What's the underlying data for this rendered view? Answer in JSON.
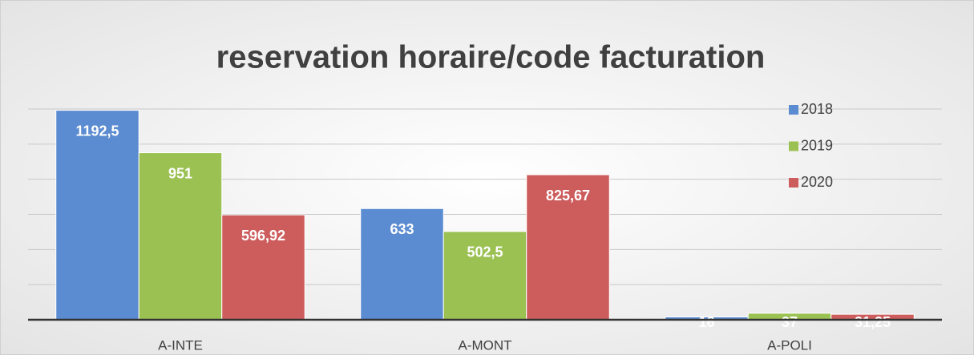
{
  "chart_data": {
    "type": "bar",
    "title": "reservation horaire/code facturation",
    "categories": [
      "A-INTE",
      "A-MONT",
      "A-POLI"
    ],
    "series": [
      {
        "name": "2018",
        "color": "#5b8bd0",
        "values": [
          1192.5,
          633,
          16
        ],
        "value_labels": [
          "1192,5",
          "633",
          "16"
        ]
      },
      {
        "name": "2019",
        "color": "#9bc153",
        "values": [
          951,
          502.5,
          37
        ],
        "value_labels": [
          "951",
          "502,5",
          "37"
        ]
      },
      {
        "name": "2020",
        "color": "#cd5c5c",
        "values": [
          596.92,
          825.67,
          31.25
        ],
        "value_labels": [
          "596,92",
          "825,67",
          "31,25"
        ]
      }
    ],
    "ylim": [
      0,
      1200
    ],
    "yticks": [
      0,
      200,
      400,
      600,
      800,
      1000,
      1200
    ],
    "grid": true,
    "legend": "top-right"
  }
}
